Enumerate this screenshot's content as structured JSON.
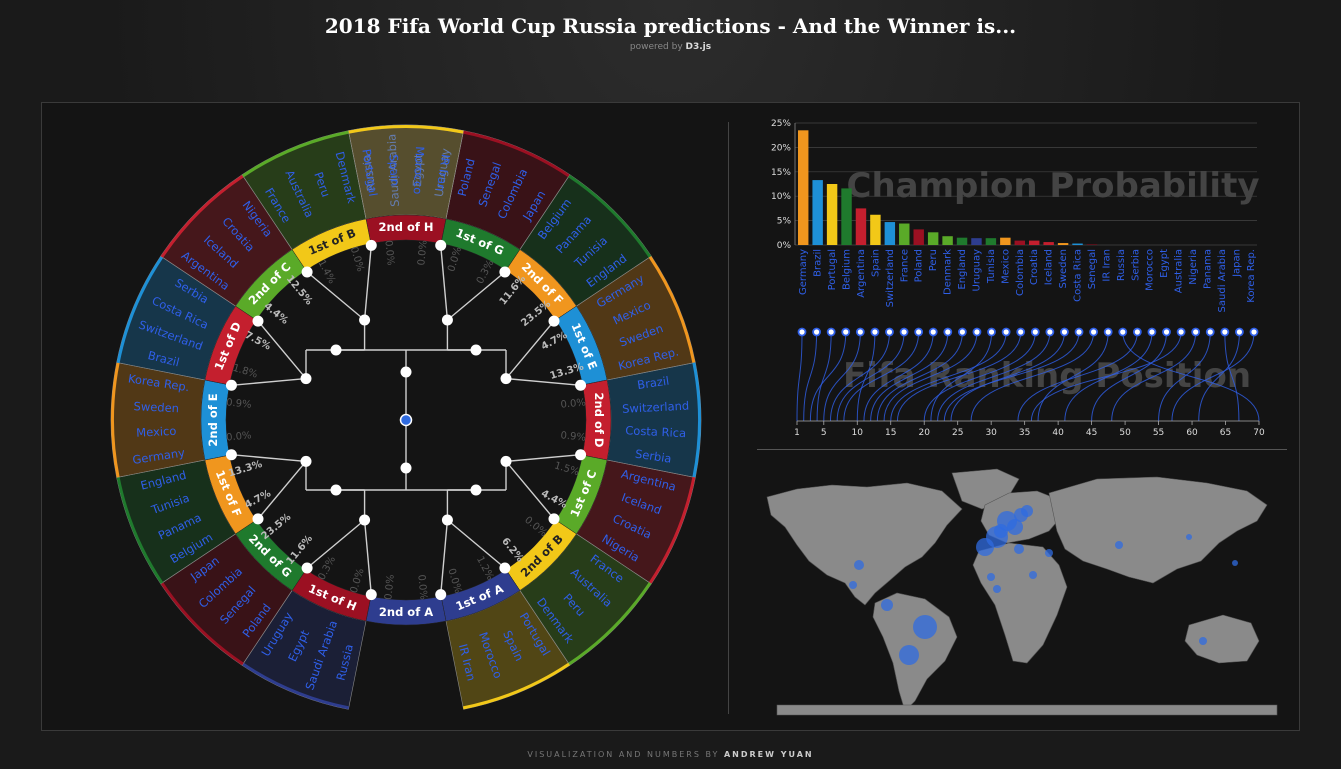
{
  "header": {
    "title": "2018 Fifa World Cup Russia predictions - And the Winner is...",
    "subtitle_prefix": "powered by",
    "subtitle_link": "D3.js"
  },
  "footer": {
    "prefix": "VISUALIZATION AND NUMBERS BY",
    "author": "ANDREW YUAN"
  },
  "colors": {
    "group_A": "#2e3d8f",
    "group_B": "#f2c818",
    "group_C": "#5aaa28",
    "group_D": "#c41f2e",
    "group_E": "#1e90d6",
    "group_F": "#f0961e",
    "group_G": "#1f7a2d",
    "group_H": "#9b1022",
    "team_text": "#2f5fe8",
    "node": "#2f6be0"
  },
  "bracket": {
    "sectors": [
      {
        "group": "A",
        "teams": [
          "Russia",
          "Saudi Arabia",
          "Egypt",
          "Uruguay"
        ]
      },
      {
        "group": "H",
        "teams": [
          "Poland",
          "Senegal",
          "Colombia",
          "Japan"
        ]
      },
      {
        "group": "G",
        "teams": [
          "Belgium",
          "Panama",
          "Tunisia",
          "England"
        ]
      },
      {
        "group": "F",
        "teams": [
          "Germany",
          "Mexico",
          "Sweden",
          "Korea Rep."
        ]
      },
      {
        "group": "E",
        "teams": [
          "Brazil",
          "Switzerland",
          "Costa Rica",
          "Serbia"
        ]
      },
      {
        "group": "D",
        "teams": [
          "Argentina",
          "Iceland",
          "Croatia",
          "Nigeria"
        ]
      },
      {
        "group": "C",
        "teams": [
          "France",
          "Australia",
          "Peru",
          "Denmark"
        ]
      },
      {
        "group": "B",
        "teams": [
          "Portugal",
          "Spain",
          "Morocco",
          "IR Iran"
        ]
      }
    ],
    "ring_labels_right": [
      "2nd of H",
      "1st of G",
      "2nd of F",
      "1st of E",
      "2nd of D",
      "1st of C",
      "2nd of B",
      "1st of A"
    ],
    "ring_labels_left": [
      "2nd of A",
      "1st of H",
      "2nd of G",
      "1st of F",
      "2nd of E",
      "1st of D",
      "2nd of C",
      "1st of B"
    ],
    "probabilities_right": [
      "0.0%",
      "0.0%",
      "0.3%",
      "11.6%",
      "23.5%",
      "4.7%",
      "13.3%",
      "0.0%",
      "0.9%",
      "1.5%",
      "4.4%",
      "0.0%",
      "6.2%",
      "1.2%",
      "0.0%",
      "0.0%"
    ],
    "probabilities_left": [
      "0.0%",
      "0.0%",
      "0.3%",
      "11.6%",
      "23.5%",
      "4.7%",
      "13.3%",
      "0.0%",
      "0.9%",
      "1.8%",
      "7.5%",
      "4.4%",
      "12.5%",
      "1.4%",
      "0.0%",
      "0.0%"
    ]
  },
  "charts": {
    "champion_watermark": "Champion Probability",
    "ranking_watermark": "Fifa Ranking Position"
  },
  "chart_data": [
    {
      "type": "bar",
      "title": "Champion Probability",
      "categories": [
        "Germany",
        "Brazil",
        "Portugal",
        "Belgium",
        "Argentina",
        "Spain",
        "Switzerland",
        "France",
        "Poland",
        "Peru",
        "Denmark",
        "England",
        "Uruguay",
        "Tunisia",
        "Mexico",
        "Colombia",
        "Croatia",
        "Iceland",
        "Sweden",
        "Costa Rica",
        "Senegal",
        "IR Iran",
        "Russia",
        "Serbia",
        "Morocco",
        "Egypt",
        "Australia",
        "Nigeria",
        "Panama",
        "Saudi Arabia",
        "Japan",
        "Korea Rep."
      ],
      "values": [
        23.5,
        13.3,
        12.5,
        11.6,
        7.5,
        6.2,
        4.7,
        4.4,
        3.2,
        2.6,
        1.8,
        1.5,
        1.4,
        1.4,
        1.5,
        0.9,
        0.9,
        0.6,
        0.4,
        0.3,
        0.1,
        0,
        0,
        0,
        0,
        0,
        0,
        0,
        0,
        0,
        0,
        0
      ],
      "bar_colors": [
        "#f0961e",
        "#1e90d6",
        "#f2c818",
        "#1f7a2d",
        "#c41f2e",
        "#f2c818",
        "#1e90d6",
        "#5aaa28",
        "#9b1022",
        "#5aaa28",
        "#5aaa28",
        "#1f7a2d",
        "#2e3d8f",
        "#1f7a2d",
        "#f0961e",
        "#9b1022",
        "#c41f2e",
        "#c41f2e",
        "#f0961e",
        "#1e90d6",
        "#9b1022",
        "#f2c818",
        "#2e3d8f",
        "#1e90d6",
        "#f2c818",
        "#2e3d8f",
        "#5aaa28",
        "#c41f2e",
        "#1f7a2d",
        "#2e3d8f",
        "#9b1022",
        "#f0961e"
      ],
      "ylim": [
        0,
        25
      ],
      "yticks": [
        "0%",
        "5%",
        "10%",
        "15%",
        "20%",
        "25%"
      ],
      "grid": true
    },
    {
      "type": "scatter",
      "title": "Fifa Ranking Position",
      "teams": [
        "Germany",
        "Brazil",
        "Portugal",
        "Belgium",
        "Argentina",
        "Spain",
        "Switzerland",
        "France",
        "Poland",
        "Peru",
        "Denmark",
        "England",
        "Uruguay",
        "Tunisia",
        "Mexico",
        "Colombia",
        "Croatia",
        "Iceland",
        "Sweden",
        "Costa Rica",
        "Senegal",
        "IR Iran",
        "Russia",
        "Serbia",
        "Morocco",
        "Egypt",
        "Australia",
        "Nigeria",
        "Panama",
        "Saudi Arabia",
        "Japan",
        "Korea Rep."
      ],
      "ranking": [
        1,
        2,
        4,
        3,
        5,
        10,
        6,
        7,
        8,
        11,
        12,
        13,
        14,
        21,
        15,
        16,
        20,
        22,
        24,
        23,
        27,
        37,
        70,
        34,
        41,
        45,
        36,
        48,
        55,
        67,
        61,
        57
      ],
      "xticks": [
        1,
        5,
        10,
        15,
        20,
        25,
        30,
        35,
        40,
        45,
        50,
        55,
        60,
        65,
        70
      ],
      "xlim": [
        1,
        70
      ]
    }
  ]
}
